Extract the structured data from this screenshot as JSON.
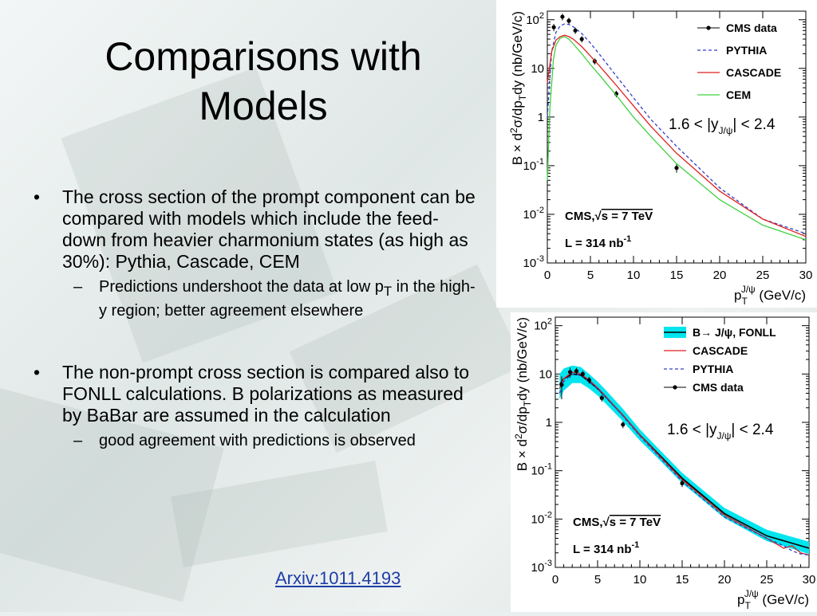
{
  "slide": {
    "title_line1": "Comparisons with",
    "title_line2": "Models",
    "bullets": [
      {
        "marker": "•",
        "text": "The cross section of the prompt component can be compared with models which include the feed-down from heavier charmonium states (as high as 30%): Pythia, Cascade, CEM"
      },
      {
        "marker": "•",
        "text": "The non-prompt cross section is compared also to FONLL calculations. B polarizations as measured by BaBar are assumed in the calculation"
      }
    ],
    "subbullets": [
      {
        "marker": "–",
        "text_pre": "Predictions undershoot the data at low p",
        "sub": "T",
        "text_post": " in the high-y region; better agreement elsewhere"
      },
      {
        "marker": "–",
        "text": "good agreement with predictions is observed"
      }
    ],
    "link": "Arxiv:1011.4193"
  },
  "chart_data": [
    {
      "type": "line",
      "x_label": "p_T^{J/ψ} (GeV/c)",
      "y_label": "B × d²σ/dp_T dy (nb/GeV/c)",
      "y_scale": "log",
      "xlim": [
        0,
        30
      ],
      "ylim": [
        0.001,
        150
      ],
      "x_ticks": [
        0,
        5,
        10,
        15,
        20,
        25,
        30
      ],
      "y_ticks": [
        {
          "v": 100,
          "b": "10",
          "e": "2"
        },
        {
          "v": 10,
          "b": "10",
          "e": ""
        },
        {
          "v": 1,
          "b": "1",
          "e": ""
        },
        {
          "v": 0.1,
          "b": "10",
          "e": "-1"
        },
        {
          "v": 0.01,
          "b": "10",
          "e": "-2"
        },
        {
          "v": 0.001,
          "b": "10",
          "e": "-3"
        }
      ],
      "annotations": {
        "rapidity_pre": "1.6 < |y",
        "rapidity_sub": "J/ψ",
        "rapidity_post": "| < 2.4",
        "experiment": "CMS,",
        "energy": "s = 7 TeV",
        "lumi_pre": "L = 314 nb",
        "lumi_exp": "-1"
      },
      "series": [
        {
          "name": "CMS data",
          "style": "points",
          "color": "#000000",
          "x": [
            0.75,
            1.75,
            2.5,
            3.25,
            4.0,
            5.5,
            8.0,
            15.0
          ],
          "y": [
            70,
            115,
            95,
            60,
            40,
            14,
            3.0,
            0.09
          ],
          "err": [
            12,
            18,
            15,
            9,
            6,
            2,
            0.45,
            0.018
          ]
        },
        {
          "name": "PYTHIA",
          "style": "dashed",
          "color": "#3040c8",
          "x": [
            0.0,
            0.5,
            1,
            1.5,
            2,
            2.5,
            3,
            4,
            5,
            6,
            8,
            10,
            12,
            15,
            20,
            25,
            30
          ],
          "y": [
            1.0,
            22,
            55,
            75,
            82,
            80,
            72,
            52,
            33,
            20,
            7,
            2.5,
            0.9,
            0.25,
            0.035,
            0.008,
            0.004
          ]
        },
        {
          "name": "CASCADE",
          "style": "solid",
          "color": "#e02020",
          "x": [
            0.0,
            0.5,
            1,
            1.5,
            2,
            2.5,
            3,
            4,
            5,
            6,
            8,
            10,
            12,
            15,
            20,
            25,
            30
          ],
          "y": [
            5,
            22,
            38,
            45,
            48,
            45,
            40,
            28,
            18,
            11.5,
            4.5,
            1.7,
            0.65,
            0.18,
            0.03,
            0.008,
            0.0035
          ]
        },
        {
          "name": "CEM",
          "style": "solid",
          "color": "#40d040",
          "x": [
            0.0,
            0.3,
            0.7,
            1.0,
            1.5,
            2.0,
            2.5,
            3,
            4,
            5,
            6,
            8,
            10,
            12,
            15,
            20,
            25,
            30
          ],
          "y": [
            0.05,
            1.5,
            15,
            30,
            42,
            45,
            40,
            32,
            20,
            12,
            7.5,
            2.8,
            1.0,
            0.4,
            0.11,
            0.02,
            0.006,
            0.003
          ]
        }
      ]
    },
    {
      "type": "line",
      "x_label": "p_T^{J/ψ} (GeV/c)",
      "y_label": "B × d²σ/dp_T dy (nb/GeV/c)",
      "y_scale": "log",
      "xlim": [
        0,
        30
      ],
      "ylim": [
        0.001,
        150
      ],
      "x_ticks": [
        0,
        5,
        10,
        15,
        20,
        25,
        30
      ],
      "y_ticks": [
        {
          "v": 100,
          "b": "10",
          "e": "2"
        },
        {
          "v": 10,
          "b": "10",
          "e": ""
        },
        {
          "v": 1,
          "b": "1",
          "e": ""
        },
        {
          "v": 0.1,
          "b": "10",
          "e": "-1"
        },
        {
          "v": 0.01,
          "b": "10",
          "e": "-2"
        },
        {
          "v": 0.001,
          "b": "10",
          "e": "-3"
        }
      ],
      "annotations": {
        "rapidity_pre": "1.6 < |y",
        "rapidity_sub": "J/ψ",
        "rapidity_post": "| < 2.4",
        "experiment": "CMS,",
        "energy": "s = 7 TeV",
        "lumi_pre": "L = 314 nb",
        "lumi_exp": "-1"
      },
      "series": [
        {
          "name": "B→ J/ψ, FONLL",
          "style": "band",
          "color": "#00e5ee",
          "x": [
            0.5,
            1,
            2,
            3,
            4,
            5,
            6,
            8,
            10,
            12,
            15,
            20,
            25,
            30
          ],
          "y": [
            6,
            8,
            10,
            9.5,
            7,
            5,
            3.3,
            1.4,
            0.55,
            0.24,
            0.07,
            0.013,
            0.0045,
            0.0025
          ],
          "y_low": [
            3,
            4.5,
            6.5,
            6.5,
            5,
            3.6,
            2.4,
            1.05,
            0.42,
            0.19,
            0.055,
            0.0105,
            0.0035,
            0.0019
          ],
          "y_high": [
            10,
            13,
            15,
            14,
            10,
            7,
            4.6,
            1.9,
            0.72,
            0.31,
            0.09,
            0.017,
            0.006,
            0.0034
          ]
        },
        {
          "name": "CASCADE",
          "style": "solid",
          "color": "#e02020",
          "x": [
            0.5,
            1,
            2,
            3,
            4,
            5,
            6,
            8,
            10,
            12,
            15,
            20,
            25,
            27,
            28,
            29,
            30
          ],
          "y": [
            5,
            8,
            11,
            10,
            7.5,
            5.2,
            3.4,
            1.4,
            0.55,
            0.23,
            0.065,
            0.012,
            0.004,
            0.0025,
            0.0028,
            0.002,
            0.0018
          ]
        },
        {
          "name": "PYTHIA",
          "style": "dashed",
          "color": "#3040c8",
          "x": [
            0.5,
            1,
            2,
            3,
            4,
            5,
            6,
            8,
            10,
            12,
            15,
            20,
            25,
            27,
            28,
            29,
            30
          ],
          "y": [
            4,
            7,
            10,
            9.5,
            7.2,
            5,
            3.3,
            1.35,
            0.52,
            0.22,
            0.06,
            0.011,
            0.004,
            0.0028,
            0.0022,
            0.0019,
            0.0018
          ]
        },
        {
          "name": "CMS data",
          "style": "points",
          "color": "#000000",
          "x": [
            0.75,
            1.75,
            2.5,
            3.25,
            4.0,
            5.5,
            8.0,
            15.0
          ],
          "y": [
            6,
            11,
            11.5,
            10,
            7.5,
            3.2,
            0.9,
            0.055
          ],
          "err": [
            3,
            2.5,
            2,
            1.6,
            1.2,
            0.5,
            0.14,
            0.009
          ]
        }
      ]
    }
  ]
}
